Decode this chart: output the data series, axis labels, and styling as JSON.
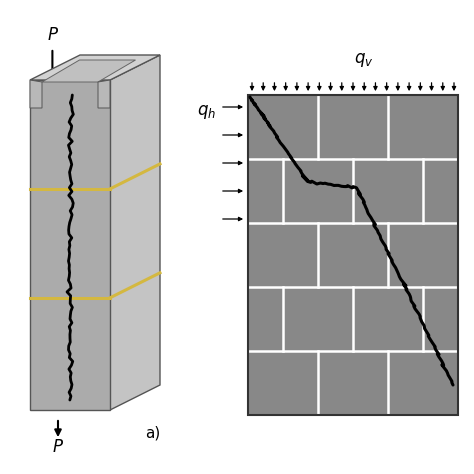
{
  "fig_width": 4.74,
  "fig_height": 4.74,
  "fig_dpi": 100,
  "bg_color": "#ffffff",
  "front_color": "#a8a8a8",
  "side_color": "#c0c0c0",
  "top_color": "#d0d0d0",
  "hole_color": "#c8c8c8",
  "hole_inner_color": "#b8b8b8",
  "mortar_color": "#d4b840",
  "brick_color": "#888888",
  "joint_color": "#ffffff",
  "crack_color": "#000000",
  "label_a": "a)",
  "label_P": "P",
  "label_qv": "q",
  "label_qh": "q"
}
